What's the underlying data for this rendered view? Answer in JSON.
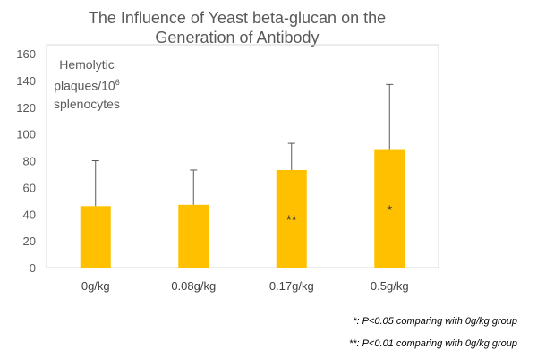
{
  "chart_data": {
    "type": "bar",
    "title_line1": "The Influence of Yeast beta-glucan on the",
    "title_line2": "Generation of Antibody",
    "ylabel_line1": "Hemolytic",
    "ylabel_line2": "plaques/10",
    "ylabel_sup": "6",
    "ylabel_line3": "splenocytes",
    "categories": [
      "0g/kg",
      "0.08g/kg",
      "0.17g/kg",
      "0.5g/kg"
    ],
    "values": [
      46,
      47,
      73,
      88
    ],
    "error_upper": [
      80,
      73,
      93,
      137
    ],
    "significance": [
      "",
      "",
      "**",
      "*"
    ],
    "ylim": [
      0,
      160
    ],
    "yticks": [
      0,
      20,
      40,
      60,
      80,
      100,
      120,
      140,
      160
    ],
    "grid": false,
    "bar_color": "#FFC000",
    "notes": [
      "*: P<0.05 comparing with 0g/kg group",
      "**: P<0.01 comparing with 0g/kg group"
    ]
  }
}
